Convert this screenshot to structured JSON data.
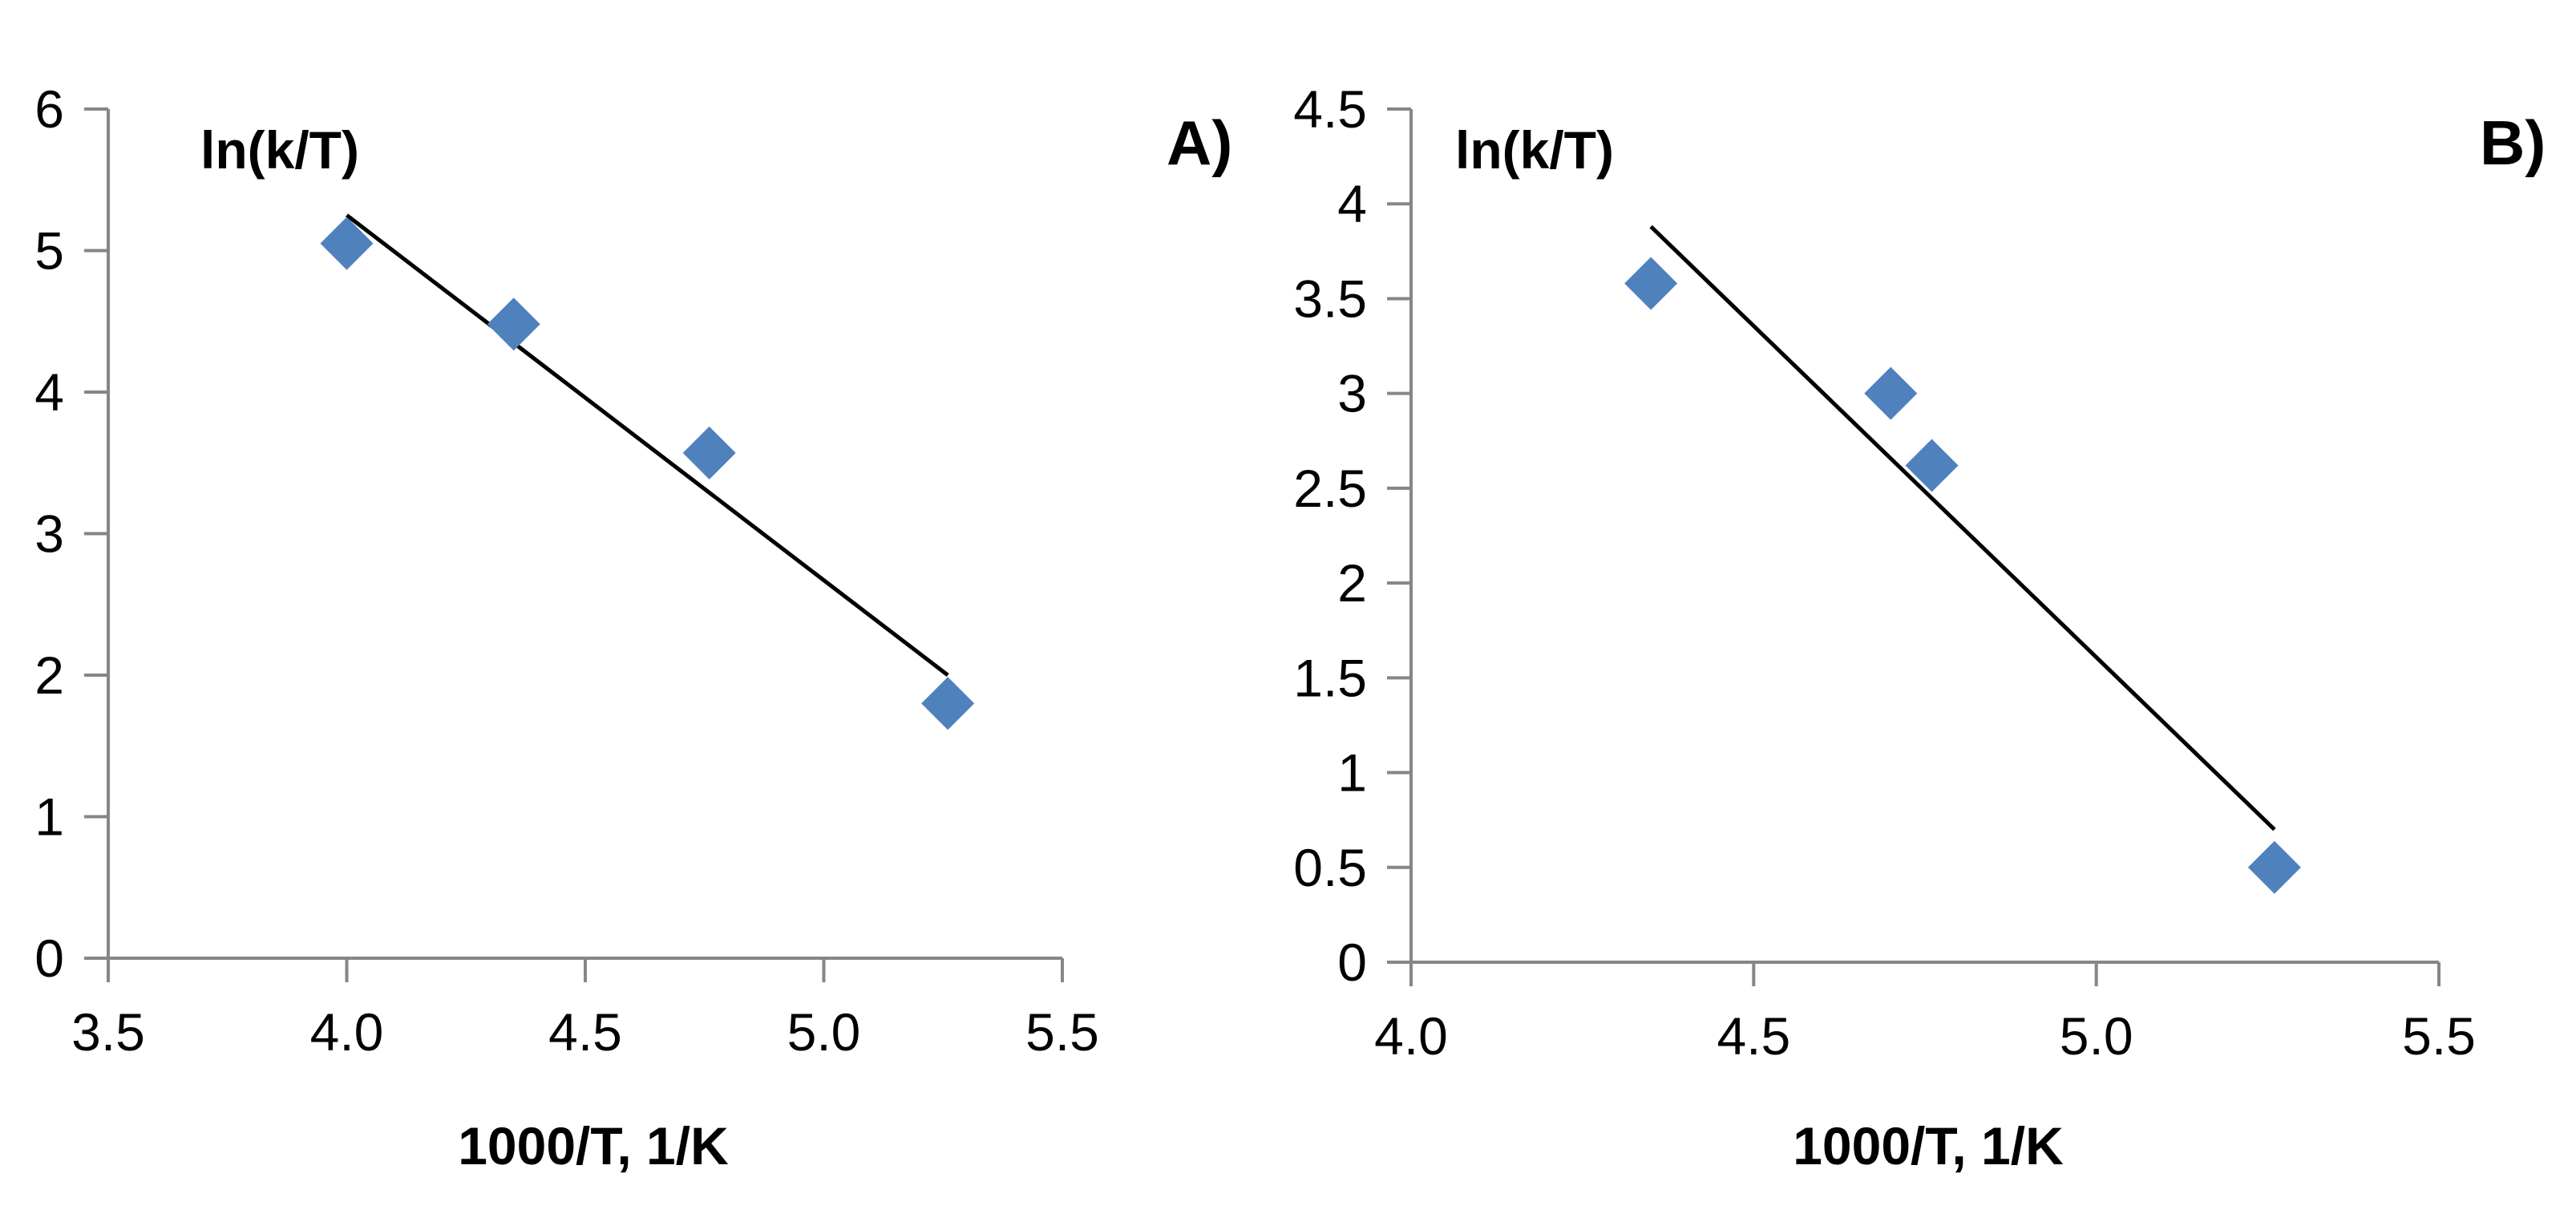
{
  "chart_data": [
    {
      "type": "scatter",
      "panel_label": "A)",
      "ylabel": "ln(k/T)",
      "xlabel": "1000/T, 1/K",
      "xlim": [
        3.5,
        5.5
      ],
      "ylim": [
        0,
        6
      ],
      "x_ticks": [
        3.5,
        4.0,
        4.5,
        5.0,
        5.5
      ],
      "x_tick_labels": [
        "3.5",
        "4.0",
        "4.5",
        "5.0",
        "5.5"
      ],
      "y_ticks": [
        0,
        1,
        2,
        3,
        4,
        5,
        6
      ],
      "y_tick_labels": [
        "0",
        "1",
        "2",
        "3",
        "4",
        "5",
        "6"
      ],
      "grid": false,
      "marker": "diamond",
      "marker_color": "#4F81BD",
      "line_color": "#000000",
      "points": [
        {
          "x": 4.0,
          "y": 5.05
        },
        {
          "x": 4.35,
          "y": 4.48
        },
        {
          "x": 4.76,
          "y": 3.57
        },
        {
          "x": 5.26,
          "y": 1.8
        }
      ],
      "trendline": [
        {
          "x": 4.0,
          "y": 5.25
        },
        {
          "x": 5.26,
          "y": 2.0
        }
      ]
    },
    {
      "type": "scatter",
      "panel_label": "B)",
      "ylabel": "ln(k/T)",
      "xlabel": "1000/T, 1/K",
      "xlim": [
        4.0,
        5.5
      ],
      "ylim": [
        0,
        4.5
      ],
      "x_ticks": [
        4.0,
        4.5,
        5.0,
        5.5
      ],
      "x_tick_labels": [
        "4.0",
        "4.5",
        "5.0",
        "5.5"
      ],
      "y_ticks": [
        0,
        0.5,
        1,
        1.5,
        2,
        2.5,
        3,
        3.5,
        4,
        4.5
      ],
      "y_tick_labels": [
        "0",
        "0.5",
        "1",
        "1.5",
        "2",
        "2.5",
        "3",
        "3.5",
        "4",
        "4.5"
      ],
      "grid": false,
      "marker": "diamond",
      "marker_color": "#4F81BD",
      "line_color": "#000000",
      "points": [
        {
          "x": 4.35,
          "y": 3.58
        },
        {
          "x": 4.7,
          "y": 3.0
        },
        {
          "x": 4.76,
          "y": 2.62
        },
        {
          "x": 5.26,
          "y": 0.5
        }
      ],
      "trendline": [
        {
          "x": 4.35,
          "y": 3.88
        },
        {
          "x": 5.26,
          "y": 0.7
        }
      ]
    }
  ]
}
